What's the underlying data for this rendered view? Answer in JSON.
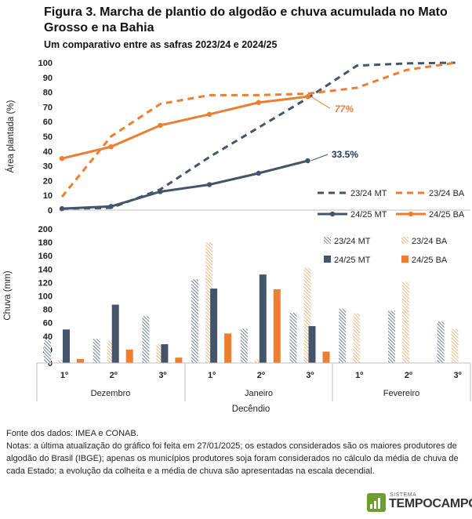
{
  "title": "Figura 3. Marcha de plantio do algodão e chuva acumulada no Mato Grosso e na Bahia",
  "subtitle": "Um comparativo entre as safras 2023/24  e 2024/25",
  "colors": {
    "mt_dark": "#44546a",
    "ba_orange": "#ed7d31",
    "hatch_orange": "#e8a060"
  },
  "chart_data": [
    {
      "type": "line",
      "ylabel": "Área plantada (%)",
      "ylim": [
        0,
        100
      ],
      "yticks": [
        "0",
        "10",
        "20",
        "30",
        "40",
        "50",
        "60",
        "70",
        "80",
        "90",
        "100"
      ],
      "x_count": 9,
      "series": [
        {
          "name": "23/24 MT",
          "style": "dashed",
          "color": "#44546a",
          "values": [
            1,
            1.5,
            14,
            36,
            56,
            76,
            98,
            99.5,
            100
          ]
        },
        {
          "name": "23/24 BA",
          "style": "dashed",
          "color": "#ed7d31",
          "values": [
            9,
            50,
            72,
            78,
            78,
            79,
            83,
            95,
            100
          ]
        },
        {
          "name": "24/25 MT",
          "style": "solid",
          "color": "#44546a",
          "values": [
            1,
            2.5,
            12.5,
            17.3,
            25,
            33.5
          ]
        },
        {
          "name": "24/25 BA",
          "style": "solid",
          "color": "#ed7d31",
          "values": [
            35,
            43,
            57.5,
            65,
            73,
            77
          ]
        }
      ],
      "annotations": [
        "77%",
        "33.5%"
      ]
    },
    {
      "type": "bar",
      "ylabel": "Chuva (mm)",
      "xlabel": "Decêndio",
      "ylim": [
        0,
        200
      ],
      "yticks": [
        "0",
        "20",
        "40",
        "60",
        "80",
        "100",
        "120",
        "140",
        "160",
        "180",
        "200"
      ],
      "categories": [
        "1º",
        "2º",
        "3º",
        "1º",
        "2º",
        "3º",
        "1º",
        "2º",
        "3º"
      ],
      "groups": [
        "Dezembro",
        "Janeiro",
        "Fevereiro"
      ],
      "series": [
        {
          "name": "23/24 MT",
          "fill": "hatch",
          "color": "#44546a",
          "values": [
            34,
            36,
            70,
            125,
            51,
            75,
            81,
            78,
            62
          ]
        },
        {
          "name": "23/24 BA",
          "fill": "hatch",
          "color": "#e8a060",
          "values": [
            5,
            33,
            28,
            180,
            5,
            142,
            74,
            121,
            51
          ]
        },
        {
          "name": "24/25 MT",
          "fill": "solid",
          "color": "#44546a",
          "values": [
            50,
            87,
            28,
            111,
            132,
            55,
            null,
            null,
            null
          ]
        },
        {
          "name": "24/25 BA",
          "fill": "solid",
          "color": "#ed7d31",
          "values": [
            6,
            20,
            8,
            44,
            110,
            17,
            null,
            null,
            null
          ]
        }
      ]
    }
  ],
  "footer": {
    "source": "Fonte dos dados: IMEA e CONAB.",
    "notes": "Notas: a última atualização do gráfico foi feita em 27/01/2025; os estados considerados são os maiores produtores de algodão do Brasil (IBGE); apenas os municípios produtores soja foram considerados no cálculo da média de chuva de cada Estado; a evolução da colheita e a média de chuva são apresentadas na escala decendial."
  },
  "logo": {
    "small": "SISTEMA",
    "big": "TEMPOCAMPO"
  }
}
